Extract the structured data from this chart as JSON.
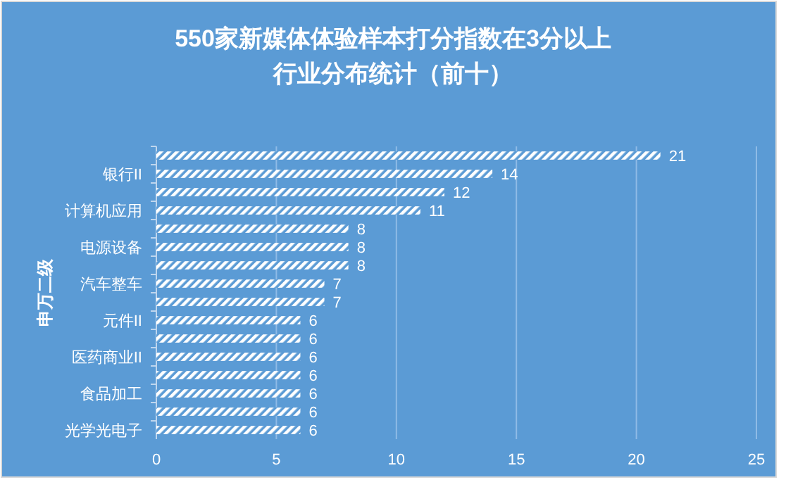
{
  "chart_data": {
    "type": "bar",
    "orientation": "horizontal",
    "title": "550家新媒体体验样本打分指数在3分以上",
    "subtitle": "行业分布统计（前十）",
    "ylabel": "申万二级",
    "categories": [
      null,
      "银行II",
      null,
      "计算机应用",
      null,
      "电源设备",
      null,
      "汽车整车",
      null,
      "元件II",
      null,
      "医药商业II",
      null,
      "食品加工",
      null,
      "光学光电子"
    ],
    "values": [
      21,
      14,
      12,
      11,
      8,
      8,
      8,
      7,
      7,
      6,
      6,
      6,
      6,
      6,
      6,
      6
    ],
    "color": "#ffffff",
    "xlim": [
      0,
      25
    ],
    "xticks": [
      0,
      5,
      10,
      15,
      20,
      25
    ],
    "grid": "x",
    "data_labels": true
  }
}
